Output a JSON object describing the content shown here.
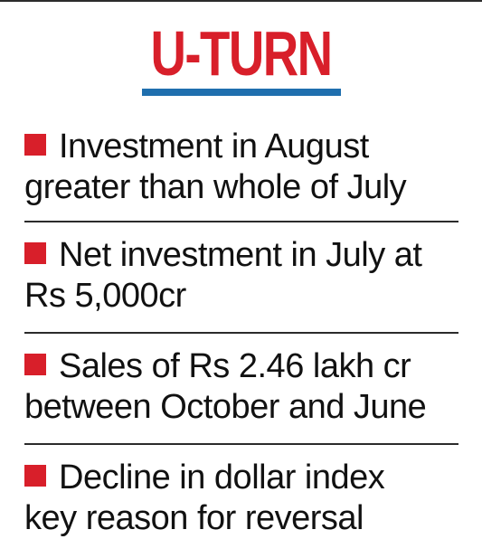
{
  "title": "U-TURN",
  "colors": {
    "title": "#d81f2a",
    "underline": "#1f6fae",
    "bullet": "#d81f2a",
    "text": "#111111",
    "rule": "#2b2b2b"
  },
  "items": [
    {
      "line1": "Investment in August",
      "line2": "greater than whole of July"
    },
    {
      "line1": "Net investment in July at",
      "line2": "Rs 5,000cr"
    },
    {
      "line1": "Sales of Rs 2.46 lakh cr",
      "line2": "between October and June"
    },
    {
      "line1": "Decline in dollar index",
      "line2": "key reason for reversal"
    }
  ]
}
